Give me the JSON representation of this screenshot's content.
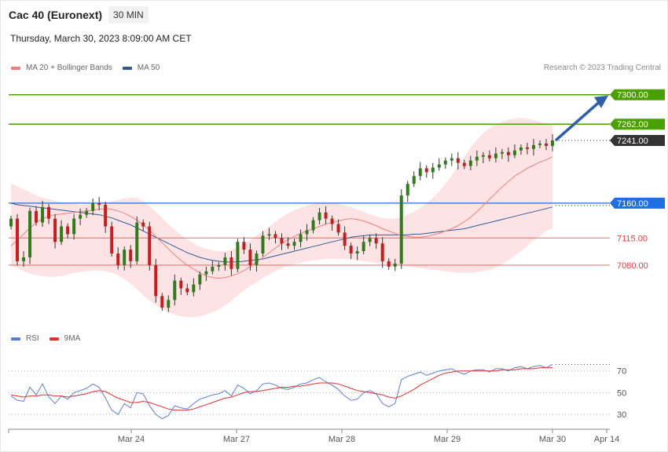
{
  "header": {
    "title": "Cac 40 (Euronext)",
    "timeframe": "30 MIN",
    "datetime": "Thursday, March 30, 2023 8:09:00 AM CET",
    "credit": "Research © 2023 Trading Central"
  },
  "legend_main": [
    {
      "label": "MA 20 + Bollinger Bands",
      "color": "#f08080"
    },
    {
      "label": "MA 50",
      "color": "#2e5b9a"
    }
  ],
  "legend_rsi": [
    {
      "label": "RSI",
      "color": "#5b7fd6"
    },
    {
      "label": "9MA",
      "color": "#e03030"
    }
  ],
  "chart_data": [
    {
      "type": "candlestick",
      "instrument": "Cac 40 (Euronext)",
      "timeframe": "30 MIN",
      "ylim": [
        7015,
        7320
      ],
      "x_tick_labels": [
        "Mar 24",
        "Mar 27",
        "Mar 28",
        "Mar 29",
        "Mar 30",
        "Apr 14"
      ],
      "current_price": "7241.00",
      "levels": [
        {
          "label": "7300.00",
          "value": 7300,
          "kind": "resistance",
          "color": "#4aa000"
        },
        {
          "label": "7262.00",
          "value": 7262,
          "kind": "resistance",
          "color": "#4aa000"
        },
        {
          "label": "7241.00",
          "value": 7241,
          "kind": "current",
          "color": "#333333"
        },
        {
          "label": "7160.00",
          "value": 7160,
          "kind": "pivot",
          "color": "#1f6fe0"
        },
        {
          "label": "7115.00",
          "value": 7115,
          "kind": "support",
          "color": "#e04040"
        },
        {
          "label": "7080.00",
          "value": 7080,
          "kind": "support",
          "color": "#e04040"
        }
      ],
      "projection": {
        "from": 7241,
        "to": 7300,
        "direction": "up"
      },
      "series": [
        {
          "name": "MA 20",
          "kind": "line",
          "values": [
            7105,
            7112,
            7120,
            7128,
            7135,
            7140,
            7143,
            7145,
            7146,
            7147,
            7148,
            7149,
            7150,
            7151,
            7152,
            7153,
            7152,
            7150,
            7147,
            7143,
            7138,
            7132,
            7125,
            7117,
            7109,
            7101,
            7093,
            7086,
            7080,
            7075,
            7070,
            7066,
            7064,
            7063,
            7064,
            7066,
            7069,
            7073,
            7078,
            7084,
            7090,
            7096,
            7102,
            7108,
            7113,
            7117,
            7121,
            7124,
            7127,
            7130,
            7133,
            7135,
            7137,
            7139,
            7140,
            7139,
            7137,
            7134,
            7131,
            7127,
            7124,
            7121,
            7118,
            7117,
            7116,
            7116,
            7117,
            7119,
            7121,
            7124,
            7127,
            7131,
            7136,
            7142,
            7149,
            7157,
            7165,
            7173,
            7181,
            7188,
            7195,
            7200,
            7205,
            7209,
            7213,
            7216,
            7220
          ]
        },
        {
          "name": "MA 50",
          "kind": "line",
          "values": [
            7160,
            7158,
            7157,
            7156,
            7155,
            7154,
            7153,
            7152,
            7151,
            7150,
            7149,
            7148,
            7147,
            7146,
            7145,
            7143,
            7141,
            7138,
            7135,
            7132,
            7128,
            7124,
            7120,
            7116,
            7112,
            7108,
            7104,
            7100,
            7096,
            7093,
            7090,
            7088,
            7086,
            7085,
            7084,
            7084,
            7084,
            7085,
            7086,
            7087,
            7088,
            7090,
            7092,
            7094,
            7096,
            7098,
            7100,
            7102,
            7104,
            7106,
            7108,
            7110,
            7112,
            7114,
            7116,
            7117,
            7118,
            7119,
            7119,
            7119,
            7119,
            7119,
            7119,
            7119,
            7120,
            7120,
            7121,
            7122,
            7123,
            7124,
            7125,
            7126,
            7127,
            7129,
            7131,
            7133,
            7135,
            7137,
            7139,
            7141,
            7143,
            7145,
            7147,
            7149,
            7151,
            7153,
            7155
          ]
        },
        {
          "name": "Bollinger Upper",
          "kind": "band",
          "values": [
            7185,
            7182,
            7178,
            7174,
            7170,
            7167,
            7165,
            7163,
            7161,
            7160,
            7159,
            7158,
            7158,
            7158,
            7159,
            7160,
            7162,
            7164,
            7166,
            7167,
            7167,
            7163,
            7156,
            7149,
            7141,
            7133,
            7126,
            7119,
            7113,
            7108,
            7104,
            7101,
            7099,
            7098,
            7098,
            7100,
            7103,
            7107,
            7112,
            7118,
            7124,
            7130,
            7136,
            7142,
            7147,
            7151,
            7154,
            7157,
            7159,
            7160,
            7160,
            7160,
            7159,
            7157,
            7155,
            7152,
            7149,
            7146,
            7143,
            7141,
            7140,
            7140,
            7142,
            7145,
            7149,
            7154,
            7160,
            7167,
            7175,
            7185,
            7196,
            7208,
            7220,
            7232,
            7242,
            7250,
            7257,
            7262,
            7265,
            7268,
            7269,
            7270,
            7269,
            7267,
            7265,
            7263,
            7262
          ]
        },
        {
          "name": "Bollinger Lower",
          "kind": "band",
          "values": [
            7080,
            7076,
            7072,
            7069,
            7067,
            7066,
            7065,
            7065,
            7066,
            7068,
            7070,
            7071,
            7072,
            7073,
            7073,
            7072,
            7070,
            7067,
            7062,
            7056,
            7049,
            7041,
            7034,
            7028,
            7023,
            7019,
            7016,
            7014,
            7013,
            7013,
            7014,
            7016,
            7019,
            7023,
            7028,
            7034,
            7041,
            7047,
            7053,
            7058,
            7063,
            7068,
            7072,
            7076,
            7079,
            7081,
            7083,
            7085,
            7086,
            7087,
            7088,
            7088,
            7088,
            7088,
            7087,
            7086,
            7085,
            7084,
            7083,
            7082,
            7081,
            7080,
            7079,
            7078,
            7077,
            7076,
            7075,
            7074,
            7073,
            7072,
            7071,
            7070,
            7070,
            7070,
            7071,
            7072,
            7074,
            7077,
            7081,
            7086,
            7092,
            7098,
            7105,
            7112,
            7118,
            7124,
            7128
          ]
        },
        {
          "name": "Close",
          "kind": "candle_close",
          "values": [
            7140,
            7085,
            7090,
            7150,
            7135,
            7155,
            7140,
            7110,
            7130,
            7120,
            7140,
            7145,
            7150,
            7160,
            7158,
            7130,
            7095,
            7080,
            7100,
            7085,
            7135,
            7130,
            7080,
            7040,
            7025,
            7035,
            7060,
            7050,
            7045,
            7055,
            7068,
            7072,
            7078,
            7080,
            7090,
            7075,
            7110,
            7100,
            7080,
            7095,
            7118,
            7120,
            7115,
            7108,
            7105,
            7110,
            7120,
            7125,
            7138,
            7148,
            7140,
            7133,
            7122,
            7105,
            7095,
            7098,
            7110,
            7115,
            7108,
            7085,
            7078,
            7082,
            7170,
            7185,
            7195,
            7205,
            7200,
            7206,
            7210,
            7215,
            7218,
            7212,
            7208,
            7215,
            7220,
            7222,
            7218,
            7224,
            7226,
            7222,
            7228,
            7232,
            7230,
            7235,
            7237,
            7234,
            7241
          ]
        }
      ],
      "rsi": {
        "levels": [
          70,
          50,
          30
        ],
        "series": [
          {
            "name": "RSI",
            "values": [
              47,
              43,
              42,
              55,
              48,
              58,
              46,
              40,
              47,
              44,
              50,
              52,
              54,
              58,
              55,
              45,
              34,
              30,
              40,
              36,
              50,
              49,
              38,
              30,
              26,
              29,
              38,
              36,
              35,
              40,
              44,
              46,
              48,
              49,
              52,
              47,
              57,
              54,
              49,
              52,
              58,
              59,
              57,
              54,
              53,
              55,
              58,
              59,
              62,
              64,
              60,
              57,
              53,
              47,
              43,
              44,
              50,
              52,
              49,
              40,
              37,
              40,
              62,
              65,
              67,
              69,
              66,
              68,
              70,
              71,
              72,
              69,
              67,
              70,
              71,
              71,
              69,
              72,
              72,
              70,
              73,
              74,
              72,
              74,
              75,
              73,
              76
            ]
          },
          {
            "name": "9MA",
            "values": [
              48,
              47,
              46,
              47,
              47,
              48,
              48,
              47,
              47,
              46,
              47,
              48,
              49,
              51,
              52,
              51,
              48,
              45,
              43,
              41,
              41,
              42,
              41,
              39,
              37,
              35,
              34,
              34,
              34,
              35,
              37,
              39,
              41,
              43,
              45,
              46,
              48,
              50,
              51,
              51,
              52,
              53,
              54,
              55,
              55,
              56,
              56,
              57,
              58,
              59,
              59,
              59,
              58,
              56,
              54,
              52,
              51,
              50,
              49,
              48,
              46,
              45,
              47,
              50,
              53,
              57,
              60,
              63,
              66,
              68,
              69,
              70,
              70,
              70,
              70,
              70,
              70,
              70,
              71,
              71,
              71,
              72,
              72,
              72,
              73,
              73,
              73
            ]
          }
        ]
      }
    }
  ]
}
